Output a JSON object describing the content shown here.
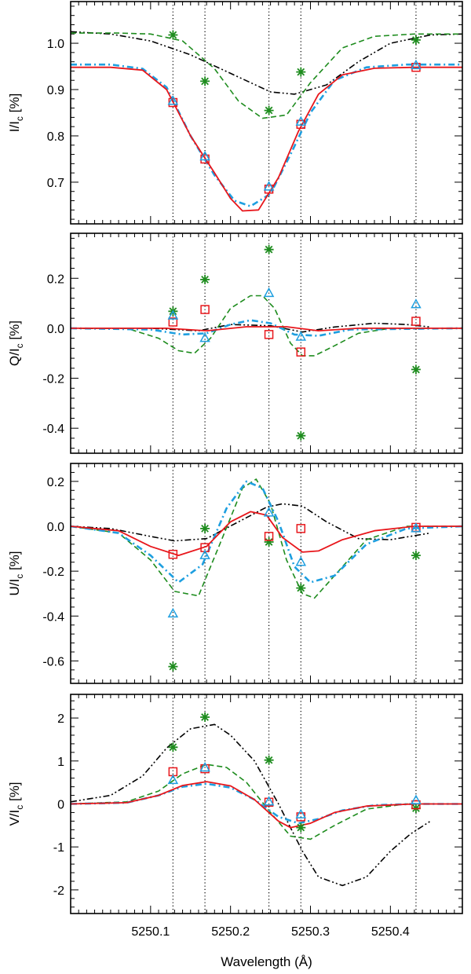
{
  "figure": {
    "xlabel": "Wavelength (Å)",
    "xlim": [
      5250.0,
      5250.49
    ],
    "xticks": [
      5250.1,
      5250.2,
      5250.3,
      5250.4
    ],
    "xtick_labels": [
      "5250.1",
      "5250.2",
      "5250.3",
      "5250.4"
    ],
    "vlines": [
      5250.128,
      5250.168,
      5250.248,
      5250.288,
      5250.432
    ],
    "colors": {
      "red": "#e8161b",
      "blue": "#1e9fe0",
      "green": "#1e8c1e",
      "black": "#000000"
    }
  },
  "chart_data": [
    {
      "type": "line",
      "id": "I",
      "ylabel_main": "I/I",
      "ylabel_sub": "c",
      "ylabel_tail": " [%]",
      "ylim": [
        0.61,
        1.09
      ],
      "yticks": [
        0.7,
        0.8,
        0.9,
        1.0
      ],
      "ytick_labels": [
        "0.7",
        "0.8",
        "0.9",
        "1.0"
      ],
      "series": [
        {
          "name": "black dash-dot-dot",
          "style": "black",
          "x": [
            5250.0,
            5250.05,
            5250.1,
            5250.15,
            5250.2,
            5250.25,
            5250.28,
            5250.32,
            5250.36,
            5250.4,
            5250.45,
            5250.49
          ],
          "y": [
            1.025,
            1.02,
            1.005,
            0.975,
            0.935,
            0.895,
            0.89,
            0.91,
            0.96,
            1.0,
            1.018,
            1.02
          ]
        },
        {
          "name": "green dashed",
          "style": "green",
          "x": [
            5250.0,
            5250.06,
            5250.1,
            5250.14,
            5250.18,
            5250.21,
            5250.24,
            5250.27,
            5250.3,
            5250.34,
            5250.38,
            5250.43,
            5250.49
          ],
          "y": [
            1.022,
            1.022,
            1.02,
            1.005,
            0.945,
            0.875,
            0.838,
            0.845,
            0.915,
            0.99,
            1.015,
            1.02,
            1.02
          ]
        },
        {
          "name": "blue dash-dot",
          "style": "blue",
          "x": [
            5250.0,
            5250.05,
            5250.09,
            5250.12,
            5250.15,
            5250.18,
            5250.205,
            5250.225,
            5250.25,
            5250.275,
            5250.3,
            5250.33,
            5250.37,
            5250.42,
            5250.49
          ],
          "y": [
            0.954,
            0.954,
            0.945,
            0.905,
            0.8,
            0.715,
            0.66,
            0.648,
            0.675,
            0.76,
            0.85,
            0.92,
            0.948,
            0.954,
            0.954
          ]
        },
        {
          "name": "red solid",
          "style": "red",
          "x": [
            5250.0,
            5250.05,
            5250.09,
            5250.12,
            5250.15,
            5250.18,
            5250.2,
            5250.215,
            5250.235,
            5250.26,
            5250.285,
            5250.31,
            5250.34,
            5250.38,
            5250.43,
            5250.49
          ],
          "y": [
            0.948,
            0.948,
            0.942,
            0.9,
            0.8,
            0.72,
            0.665,
            0.638,
            0.64,
            0.71,
            0.81,
            0.89,
            0.932,
            0.946,
            0.948,
            0.948
          ]
        }
      ],
      "markers": {
        "square": [
          [
            5250.128,
            0.872
          ],
          [
            5250.168,
            0.75
          ],
          [
            5250.248,
            0.685
          ],
          [
            5250.288,
            0.825
          ],
          [
            5250.432,
            0.948
          ]
        ],
        "triangle": [
          [
            5250.128,
            0.875
          ],
          [
            5250.168,
            0.755
          ],
          [
            5250.248,
            0.69
          ],
          [
            5250.288,
            0.83
          ],
          [
            5250.432,
            0.952
          ]
        ],
        "star": [
          [
            5250.128,
            1.018
          ],
          [
            5250.168,
            0.918
          ],
          [
            5250.248,
            0.855
          ],
          [
            5250.288,
            0.938
          ],
          [
            5250.432,
            1.007
          ]
        ]
      }
    },
    {
      "type": "line",
      "id": "Q",
      "ylabel_main": "Q/I",
      "ylabel_sub": "c",
      "ylabel_tail": " [%]",
      "ylim": [
        -0.5,
        0.38
      ],
      "yticks": [
        -0.4,
        -0.2,
        0.0,
        0.2
      ],
      "ytick_labels": [
        "-0.4",
        "-0.2",
        "0.0",
        "0.2"
      ],
      "series": [
        {
          "name": "black dash-dot-dot",
          "style": "black",
          "x": [
            5250.0,
            5250.1,
            5250.16,
            5250.2,
            5250.25,
            5250.29,
            5250.33,
            5250.38,
            5250.42,
            5250.45
          ],
          "y": [
            0.0,
            0.0,
            -0.01,
            0.015,
            0.01,
            -0.015,
            0.005,
            0.02,
            0.015,
            0.005
          ]
        },
        {
          "name": "green dashed",
          "style": "green",
          "x": [
            5250.0,
            5250.07,
            5250.11,
            5250.135,
            5250.155,
            5250.175,
            5250.2,
            5250.225,
            5250.24,
            5250.255,
            5250.275,
            5250.29,
            5250.305,
            5250.33,
            5250.36,
            5250.4,
            5250.49
          ],
          "y": [
            0.0,
            0.0,
            -0.04,
            -0.09,
            -0.1,
            -0.04,
            0.08,
            0.13,
            0.13,
            0.08,
            -0.06,
            -0.11,
            -0.11,
            -0.07,
            -0.02,
            0.0,
            0.0
          ]
        },
        {
          "name": "blue dash-dot",
          "style": "blue",
          "x": [
            5250.0,
            5250.1,
            5250.14,
            5250.17,
            5250.2,
            5250.225,
            5250.25,
            5250.28,
            5250.31,
            5250.35,
            5250.49
          ],
          "y": [
            0.0,
            -0.005,
            -0.025,
            -0.02,
            0.015,
            0.032,
            0.02,
            -0.025,
            -0.03,
            -0.005,
            0.0
          ]
        },
        {
          "name": "red solid",
          "style": "red",
          "x": [
            5250.0,
            5250.12,
            5250.17,
            5250.22,
            5250.27,
            5250.31,
            5250.36,
            5250.49
          ],
          "y": [
            0.0,
            0.0,
            -0.01,
            0.006,
            0.006,
            -0.01,
            0.0,
            0.0
          ]
        }
      ],
      "markers": {
        "square": [
          [
            5250.128,
            0.025
          ],
          [
            5250.168,
            0.075
          ],
          [
            5250.248,
            -0.025
          ],
          [
            5250.288,
            -0.095
          ],
          [
            5250.432,
            0.028
          ]
        ],
        "triangle": [
          [
            5250.128,
            0.05
          ],
          [
            5250.168,
            -0.04
          ],
          [
            5250.248,
            0.14
          ],
          [
            5250.288,
            -0.035
          ],
          [
            5250.432,
            0.095
          ]
        ],
        "star": [
          [
            5250.128,
            0.068
          ],
          [
            5250.168,
            0.195
          ],
          [
            5250.248,
            0.315
          ],
          [
            5250.288,
            -0.43
          ],
          [
            5250.432,
            -0.165
          ]
        ]
      }
    },
    {
      "type": "line",
      "id": "U",
      "ylabel_main": "U/I",
      "ylabel_sub": "c",
      "ylabel_tail": " [%]",
      "ylim": [
        -0.7,
        0.28
      ],
      "yticks": [
        -0.6,
        -0.4,
        -0.2,
        0.0,
        0.2
      ],
      "ytick_labels": [
        "-0.6",
        "-0.4",
        "-0.2",
        "0.0",
        "0.2"
      ],
      "series": [
        {
          "name": "black dash-dot-dot",
          "style": "black",
          "x": [
            5250.0,
            5250.05,
            5250.1,
            5250.13,
            5250.17,
            5250.21,
            5250.245,
            5250.265,
            5250.29,
            5250.32,
            5250.36,
            5250.4,
            5250.45
          ],
          "y": [
            0.0,
            -0.01,
            -0.045,
            -0.065,
            -0.055,
            0.02,
            0.085,
            0.1,
            0.09,
            0.02,
            -0.055,
            -0.06,
            -0.03
          ]
        },
        {
          "name": "green dashed",
          "style": "green",
          "x": [
            5250.0,
            5250.06,
            5250.1,
            5250.13,
            5250.16,
            5250.19,
            5250.215,
            5250.232,
            5250.25,
            5250.27,
            5250.29,
            5250.305,
            5250.33,
            5250.37,
            5250.42,
            5250.49
          ],
          "y": [
            0.0,
            -0.03,
            -0.15,
            -0.29,
            -0.31,
            -0.05,
            0.17,
            0.21,
            0.1,
            -0.15,
            -0.3,
            -0.32,
            -0.22,
            -0.06,
            0.0,
            0.0
          ]
        },
        {
          "name": "blue dash-dot",
          "style": "blue",
          "x": [
            5250.0,
            5250.06,
            5250.1,
            5250.135,
            5250.165,
            5250.195,
            5250.22,
            5250.24,
            5250.26,
            5250.28,
            5250.3,
            5250.33,
            5250.37,
            5250.42,
            5250.49
          ],
          "y": [
            0.0,
            -0.03,
            -0.13,
            -0.25,
            -0.17,
            0.08,
            0.2,
            0.17,
            0.02,
            -0.18,
            -0.25,
            -0.22,
            -0.08,
            -0.01,
            0.0
          ]
        },
        {
          "name": "red solid",
          "style": "red",
          "x": [
            5250.0,
            5250.06,
            5250.1,
            5250.135,
            5250.17,
            5250.2,
            5250.225,
            5250.245,
            5250.265,
            5250.29,
            5250.31,
            5250.34,
            5250.38,
            5250.43,
            5250.49
          ],
          "y": [
            0.0,
            -0.02,
            -0.09,
            -0.13,
            -0.09,
            0.02,
            0.065,
            0.05,
            -0.05,
            -0.115,
            -0.11,
            -0.06,
            -0.02,
            0.0,
            0.0
          ]
        }
      ],
      "markers": {
        "square": [
          [
            5250.128,
            -0.125
          ],
          [
            5250.168,
            -0.095
          ],
          [
            5250.248,
            -0.045
          ],
          [
            5250.288,
            -0.01
          ],
          [
            5250.432,
            -0.005
          ]
        ],
        "triangle": [
          [
            5250.128,
            -0.39
          ],
          [
            5250.168,
            -0.13
          ],
          [
            5250.248,
            0.06
          ],
          [
            5250.288,
            -0.16
          ],
          [
            5250.432,
            -0.01
          ]
        ],
        "star": [
          [
            5250.128,
            -0.625
          ],
          [
            5250.168,
            -0.01
          ],
          [
            5250.248,
            -0.07
          ],
          [
            5250.288,
            -0.275
          ],
          [
            5250.432,
            -0.13
          ]
        ]
      }
    },
    {
      "type": "line",
      "id": "V",
      "ylabel_main": "V/I",
      "ylabel_sub": "c",
      "ylabel_tail": " [%]",
      "ylim": [
        -2.55,
        2.55
      ],
      "yticks": [
        -2,
        -1,
        0,
        1,
        2
      ],
      "ytick_labels": [
        "-2",
        "-1",
        "0",
        "1",
        "2"
      ],
      "series": [
        {
          "name": "black dash-dot-dot",
          "style": "black",
          "x": [
            5250.0,
            5250.05,
            5250.09,
            5250.12,
            5250.15,
            5250.18,
            5250.2,
            5250.23,
            5250.26,
            5250.29,
            5250.31,
            5250.34,
            5250.37,
            5250.4,
            5250.425,
            5250.45
          ],
          "y": [
            0.05,
            0.2,
            0.65,
            1.3,
            1.75,
            1.85,
            1.6,
            1.0,
            0.0,
            -1.1,
            -1.7,
            -1.9,
            -1.7,
            -1.1,
            -0.7,
            -0.4
          ]
        },
        {
          "name": "green dashed",
          "style": "green",
          "x": [
            5250.0,
            5250.07,
            5250.11,
            5250.14,
            5250.17,
            5250.195,
            5250.22,
            5250.25,
            5250.275,
            5250.3,
            5250.33,
            5250.37,
            5250.42,
            5250.49
          ],
          "y": [
            0.0,
            0.05,
            0.3,
            0.7,
            0.92,
            0.85,
            0.5,
            -0.2,
            -0.75,
            -0.82,
            -0.5,
            -0.12,
            0.0,
            0.0
          ]
        },
        {
          "name": "blue dash-dot",
          "style": "blue",
          "x": [
            5250.0,
            5250.07,
            5250.11,
            5250.14,
            5250.17,
            5250.2,
            5250.23,
            5250.26,
            5250.285,
            5250.31,
            5250.34,
            5250.38,
            5250.43,
            5250.49
          ],
          "y": [
            0.0,
            0.03,
            0.2,
            0.4,
            0.47,
            0.38,
            0.1,
            -0.3,
            -0.45,
            -0.35,
            -0.15,
            -0.03,
            0.0,
            0.0
          ]
        },
        {
          "name": "red solid",
          "style": "red",
          "x": [
            5250.0,
            5250.07,
            5250.11,
            5250.14,
            5250.17,
            5250.2,
            5250.23,
            5250.26,
            5250.275,
            5250.3,
            5250.33,
            5250.37,
            5250.43,
            5250.49
          ],
          "y": [
            0.0,
            0.03,
            0.2,
            0.43,
            0.52,
            0.42,
            0.1,
            -0.4,
            -0.55,
            -0.45,
            -0.2,
            -0.05,
            0.0,
            0.0
          ]
        }
      ],
      "markers": {
        "square": [
          [
            5250.128,
            0.75
          ],
          [
            5250.168,
            0.82
          ],
          [
            5250.248,
            0.04
          ],
          [
            5250.288,
            -0.3
          ],
          [
            5250.432,
            -0.02
          ]
        ],
        "triangle": [
          [
            5250.128,
            0.55
          ],
          [
            5250.168,
            0.84
          ],
          [
            5250.248,
            0.05
          ],
          [
            5250.288,
            -0.25
          ],
          [
            5250.432,
            0.08
          ]
        ],
        "star": [
          [
            5250.128,
            1.32
          ],
          [
            5250.168,
            2.02
          ],
          [
            5250.248,
            1.02
          ],
          [
            5250.288,
            -0.55
          ],
          [
            5250.432,
            -0.1
          ]
        ]
      }
    }
  ]
}
